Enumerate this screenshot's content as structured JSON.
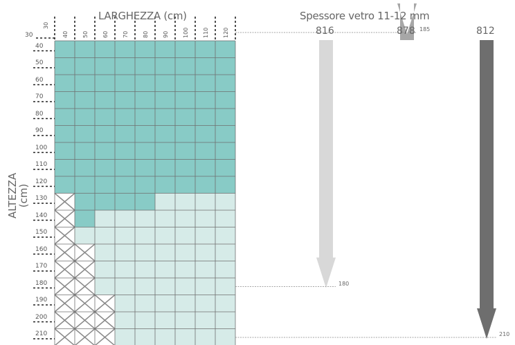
{
  "title_width": "LARGHEZZA (cm)",
  "title_height_line1": "ALTEZZA",
  "title_height_line2": "(cm)",
  "glass_thickness_label": "Spessore vetro 11-12 mm",
  "origin_label": "30",
  "column_labels": [
    "30",
    "40",
    "50",
    "60",
    "70",
    "80",
    "90",
    "100",
    "110",
    "120"
  ],
  "row_labels": [
    "40",
    "50",
    "60",
    "70",
    "80",
    "90",
    "100",
    "110",
    "120",
    "130",
    "140",
    "150",
    "160",
    "170",
    "180",
    "190",
    "200",
    "210"
  ],
  "models": [
    {
      "code": "816",
      "max_height": "180",
      "color": "#d8d8d8"
    },
    {
      "code": "878",
      "max_height": "185",
      "color": "#a7a7a7"
    },
    {
      "code": "812",
      "max_height": "210",
      "color": "#6e6e6e"
    }
  ],
  "colors": {
    "available_dark": "#88cbc6",
    "available_light": "#d6ebe8",
    "grid_line": "#6f6f6f",
    "not_available_cross": "#8a8a8a"
  },
  "grid_status": {
    "legend": "D = dark teal, L = light teal, X = not available (crossed)",
    "rows": [
      "DDDDDDDDD",
      "DDDDDDDDD",
      "DDDDDDDDD",
      "DDDDDDDDD",
      "DDDDDDDDD",
      "DDDDDDDDD",
      "DDDDDDDDD",
      "DDDDDDDDD",
      "DDDDDDDDD",
      "XDDDDLLLL",
      "XDLLLLLLL",
      "XLLLLLLLL",
      "XXLLLLLLL",
      "XXLLLLLLL",
      "XXLLLLLLL",
      "XXXLLLLLL",
      "XXXLLLLLL",
      "XXXLLLLLL"
    ]
  }
}
